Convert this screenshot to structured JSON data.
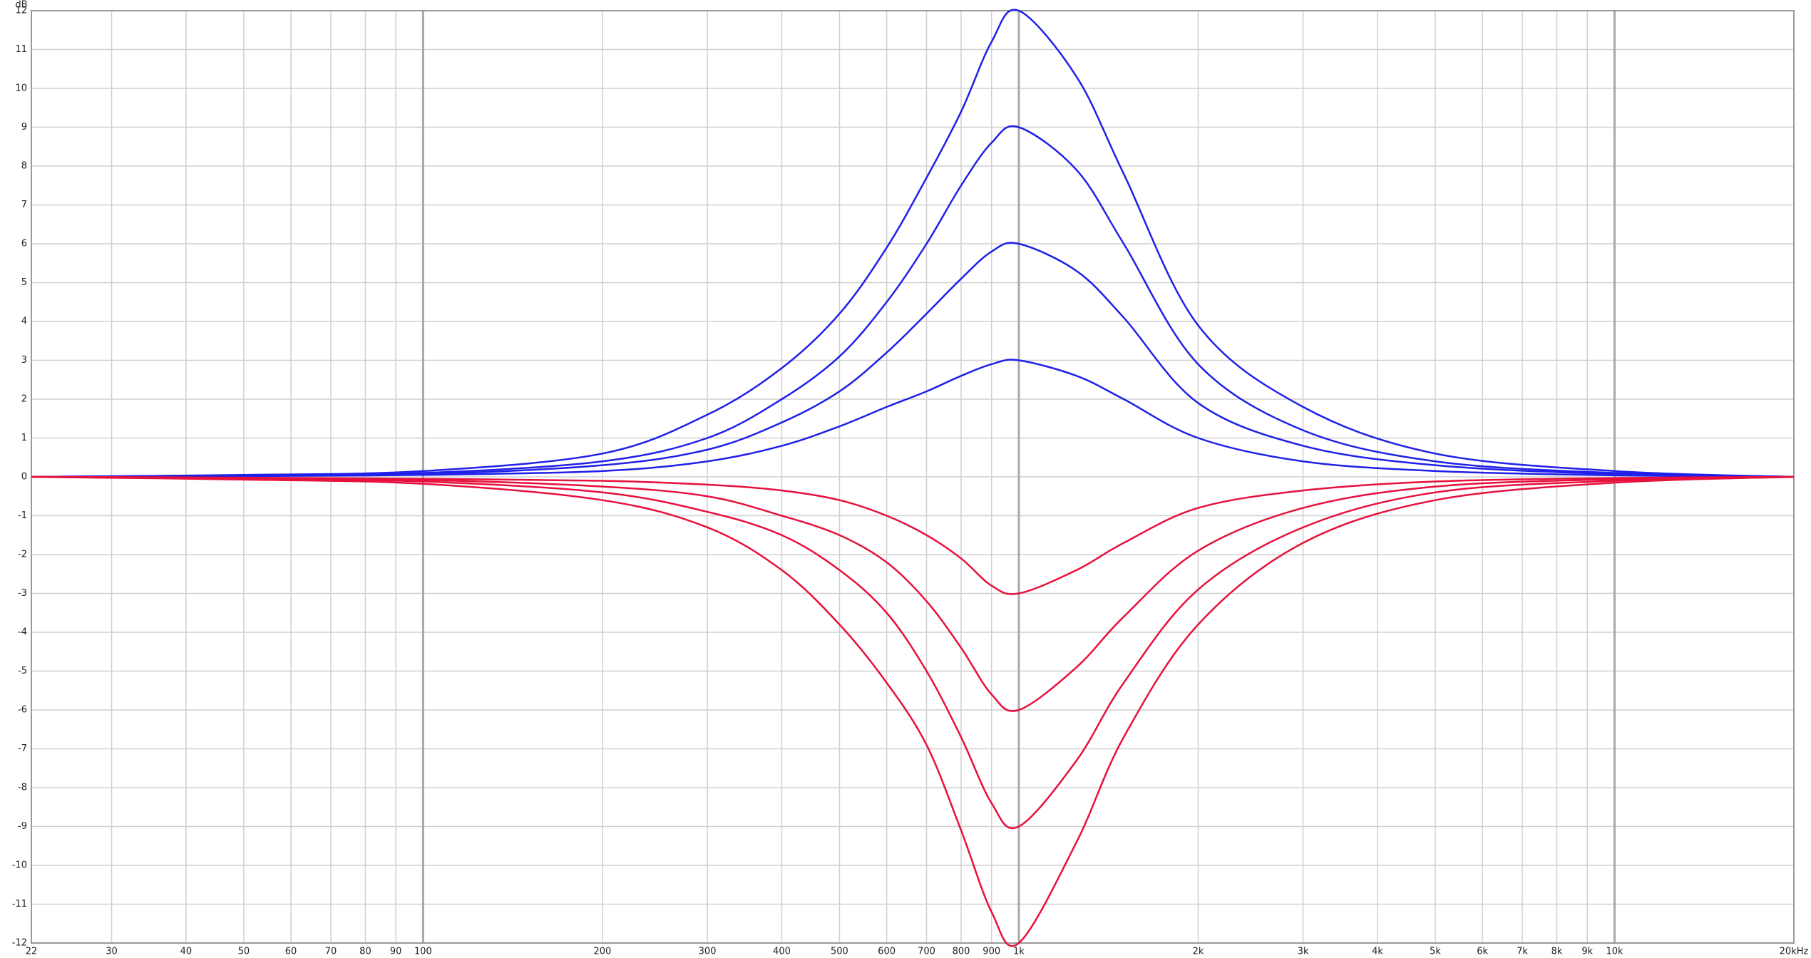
{
  "chart_data": {
    "type": "line",
    "y_axis_label": "dB",
    "log_x": true,
    "grid": true,
    "x": [
      22,
      50,
      100,
      200,
      300,
      400,
      500,
      600,
      700,
      800,
      900,
      1000,
      1250,
      1500,
      2000,
      3000,
      5000,
      10000,
      20000
    ],
    "series": [
      {
        "color": "#2020e8",
        "values": [
          0,
          0.05,
          0.15,
          0.6,
          1.6,
          2.8,
          4.2,
          5.9,
          7.7,
          9.4,
          11.2,
          12,
          10.3,
          7.8,
          3.9,
          1.8,
          0.6,
          0.15,
          0
        ]
      },
      {
        "color": "#2020e8",
        "values": [
          0,
          0.04,
          0.1,
          0.4,
          1.0,
          2.0,
          3.1,
          4.5,
          6.0,
          7.5,
          8.6,
          9,
          7.9,
          6.0,
          2.9,
          1.2,
          0.4,
          0.1,
          0
        ]
      },
      {
        "color": "#2020e8",
        "values": [
          0,
          0.03,
          0.07,
          0.3,
          0.7,
          1.4,
          2.2,
          3.2,
          4.2,
          5.1,
          5.8,
          6,
          5.3,
          4.1,
          1.9,
          0.8,
          0.3,
          0.07,
          0
        ]
      },
      {
        "color": "#2020e8",
        "values": [
          0,
          0.02,
          0.05,
          0.15,
          0.4,
          0.8,
          1.3,
          1.8,
          2.2,
          2.6,
          2.9,
          3,
          2.6,
          2.0,
          1.0,
          0.4,
          0.15,
          0.04,
          0
        ]
      },
      {
        "color": "#e8103c",
        "values": [
          0,
          -0.02,
          -0.05,
          -0.1,
          -0.2,
          -0.35,
          -0.6,
          -1.0,
          -1.5,
          -2.1,
          -2.8,
          -3,
          -2.4,
          -1.7,
          -0.8,
          -0.35,
          -0.12,
          -0.03,
          0
        ]
      },
      {
        "color": "#e8103c",
        "values": [
          0,
          -0.03,
          -0.08,
          -0.25,
          -0.5,
          -1.0,
          -1.5,
          -2.2,
          -3.2,
          -4.4,
          -5.6,
          -6,
          -4.9,
          -3.6,
          -1.9,
          -0.8,
          -0.25,
          -0.06,
          0
        ]
      },
      {
        "color": "#e8103c",
        "values": [
          0,
          -0.05,
          -0.12,
          -0.4,
          -0.9,
          -1.5,
          -2.4,
          -3.5,
          -5.0,
          -6.7,
          -8.4,
          -9,
          -7.3,
          -5.3,
          -2.9,
          -1.3,
          -0.4,
          -0.1,
          0
        ]
      },
      {
        "color": "#e8103c",
        "values": [
          0,
          -0.07,
          -0.18,
          -0.6,
          -1.3,
          -2.4,
          -3.8,
          -5.3,
          -6.9,
          -9.1,
          -11.2,
          -12,
          -9.4,
          -6.7,
          -3.8,
          -1.7,
          -0.6,
          -0.15,
          0
        ]
      }
    ],
    "xlim": [
      22,
      20000
    ],
    "xticks": [
      22,
      30,
      40,
      50,
      60,
      70,
      80,
      90,
      100,
      200,
      300,
      400,
      500,
      600,
      700,
      800,
      900,
      {
        "value": 1000,
        "label": "1k"
      },
      {
        "value": 2000,
        "label": "2k"
      },
      {
        "value": 3000,
        "label": "3k"
      },
      {
        "value": 4000,
        "label": "4k"
      },
      {
        "value": 5000,
        "label": "5k"
      },
      {
        "value": 6000,
        "label": "6k"
      },
      {
        "value": 7000,
        "label": "7k"
      },
      {
        "value": 8000,
        "label": "8k"
      },
      {
        "value": 9000,
        "label": "9k"
      },
      {
        "value": 10000,
        "label": "10k"
      },
      {
        "value": 20000,
        "label": "20kHz"
      }
    ],
    "ylim": [
      -12,
      12
    ],
    "yticks": [
      -12,
      -11,
      -10,
      -9,
      -8,
      -7,
      -6,
      -5,
      -4,
      -3,
      -2,
      -1,
      0,
      1,
      2,
      3,
      4,
      5,
      6,
      7,
      8,
      9,
      10,
      11,
      12
    ]
  }
}
